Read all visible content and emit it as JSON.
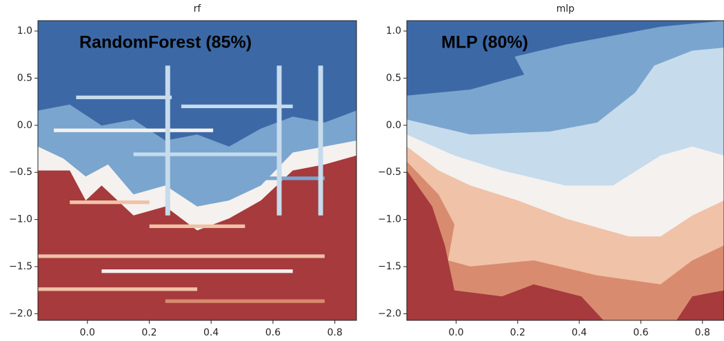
{
  "chart_data": [
    {
      "type": "contour",
      "title": "rf",
      "annotation": "RandomForest (85%)",
      "style": "rf",
      "xlim": [
        -0.16,
        0.87
      ],
      "ylim": [
        -2.07,
        1.11
      ],
      "xticks": [
        {
          "value": 0,
          "label": "0.0"
        },
        0.2,
        0.4,
        0.6,
        0.8
      ],
      "yticks": [
        {
          "value": 1,
          "label": "1.0"
        },
        0.5,
        {
          "value": 0,
          "label": "0.0"
        },
        {
          "value": -0.5,
          "label": "−0.5"
        },
        {
          "value": -1,
          "label": "−1.0"
        },
        {
          "value": -1.5,
          "label": "−1.5"
        },
        {
          "value": -2,
          "label": "−2.0"
        }
      ]
    },
    {
      "type": "contour",
      "title": "mlp",
      "annotation": "MLP (80%)",
      "style": "mlp",
      "xlim": [
        -0.16,
        0.87
      ],
      "ylim": [
        -2.07,
        1.11
      ],
      "xticks": [
        {
          "value": 0,
          "label": "0.0"
        },
        0.2,
        0.4,
        0.6,
        0.8
      ],
      "yticks": [
        {
          "value": 1,
          "label": "1.0"
        },
        0.5,
        {
          "value": 0,
          "label": "0.0"
        },
        {
          "value": -0.5,
          "label": "−0.5"
        },
        {
          "value": -1,
          "label": "−1.0"
        },
        {
          "value": -1.5,
          "label": "−1.5"
        },
        {
          "value": -2,
          "label": "−2.0"
        }
      ]
    }
  ]
}
